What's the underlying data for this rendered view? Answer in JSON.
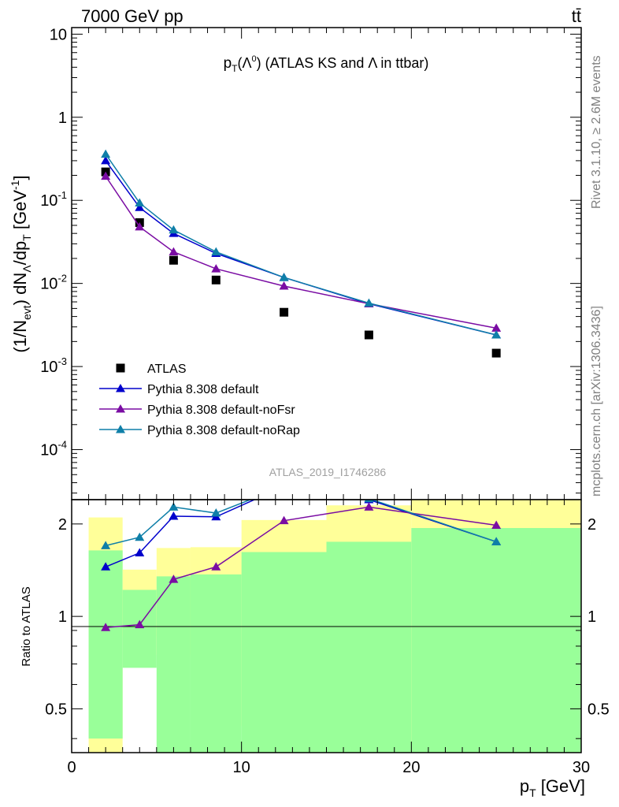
{
  "header": {
    "left": "7000 GeV pp",
    "right": "tt̄"
  },
  "side_labels": {
    "rivet": "Rivet 3.1.10, ≥ 2.6M events",
    "mcplots": "mcplots.cern.ch [arXiv:1306.3436]"
  },
  "analysis_id": "ATLAS_2019_I1746286",
  "chart_data": [
    {
      "type": "scatter",
      "panel": "main",
      "title": "p_T(Λ^0) (ATLAS KS and Λ in ttbar)",
      "ylabel": "(1/N_evt) dN_Λ/dp_T [GeV^-1]",
      "yscale": "log",
      "xlim": [
        0,
        30
      ],
      "ylim": [
        2.5e-05,
        12
      ],
      "ytick_labels": [
        "10",
        "1",
        "10^-1",
        "10^-2",
        "10^-3",
        "10^-4"
      ],
      "x": [
        2,
        4,
        6,
        8.5,
        12.5,
        17.5,
        25
      ],
      "series": [
        {
          "name": "ATLAS",
          "marker": "square",
          "color": "#000000",
          "values": [
            0.22,
            0.054,
            0.019,
            0.011,
            0.0045,
            0.0024,
            0.00145
          ]
        },
        {
          "name": "Pythia 8.308 default",
          "marker": "triangle",
          "color": "#0000cc",
          "values": [
            0.3,
            0.082,
            0.04,
            0.023,
            0.0118,
            0.0057,
            0.0024
          ]
        },
        {
          "name": "Pythia 8.308 default-noFsr",
          "marker": "triangle",
          "color": "#7a0ca3",
          "values": [
            0.195,
            0.048,
            0.024,
            0.015,
            0.0093,
            0.0057,
            0.0029
          ]
        },
        {
          "name": "Pythia 8.308 default-noRap",
          "marker": "triangle",
          "color": "#0f7fa8",
          "values": [
            0.36,
            0.093,
            0.044,
            0.024,
            0.0118,
            0.0058,
            0.0024
          ]
        }
      ],
      "legend_position": "bottom-left"
    },
    {
      "type": "line",
      "panel": "ratio",
      "ylabel": "Ratio to ATLAS",
      "xlabel": "p_T [GeV]",
      "yscale": "log",
      "xlim": [
        0,
        30
      ],
      "ylim": [
        0.36,
        2.4
      ],
      "xtick_labels": [
        "0",
        "10",
        "20",
        "30"
      ],
      "ytick_labels": [
        "0.5",
        "1",
        "2"
      ],
      "x": [
        2,
        4,
        6,
        8.5,
        12.5,
        17.5,
        25
      ],
      "series": [
        {
          "name": "Pythia 8.308 default",
          "color": "#0000cc",
          "values": [
            1.45,
            1.61,
            2.12,
            2.11,
            2.65,
            2.4,
            1.75
          ]
        },
        {
          "name": "Pythia 8.308 default-noFsr",
          "color": "#7a0ca3",
          "values": [
            0.92,
            0.94,
            1.32,
            1.45,
            2.05,
            2.27,
            1.98
          ]
        },
        {
          "name": "Pythia 8.308 default-noRap",
          "color": "#0f7fa8",
          "values": [
            1.7,
            1.81,
            2.27,
            2.17,
            2.65,
            2.42,
            1.75
          ]
        }
      ],
      "bands": [
        {
          "x_low": 1,
          "x_high": 3,
          "green": [
            0.4,
            1.64
          ],
          "yellow": [
            0.35,
            2.1
          ]
        },
        {
          "x_low": 3,
          "x_high": 5,
          "green": [
            0.68,
            1.22
          ],
          "yellow": [
            0.86,
            1.42
          ]
        },
        {
          "x_low": 5,
          "x_high": 7,
          "green": [
            0.35,
            1.35
          ],
          "yellow": [
            0.75,
            1.67
          ]
        },
        {
          "x_low": 7,
          "x_high": 10,
          "green": [
            0.35,
            1.37
          ],
          "yellow": [
            0.74,
            1.68
          ]
        },
        {
          "x_low": 10,
          "x_high": 15,
          "green": [
            0.35,
            1.62
          ],
          "yellow": [
            0.44,
            2.06
          ]
        },
        {
          "x_low": 15,
          "x_high": 20,
          "green": [
            0.35,
            1.75
          ],
          "yellow": [
            0.35,
            2.3
          ]
        },
        {
          "x_low": 20,
          "x_high": 30,
          "green": [
            0.35,
            1.94
          ],
          "yellow": [
            0.35,
            2.4
          ]
        }
      ]
    }
  ]
}
